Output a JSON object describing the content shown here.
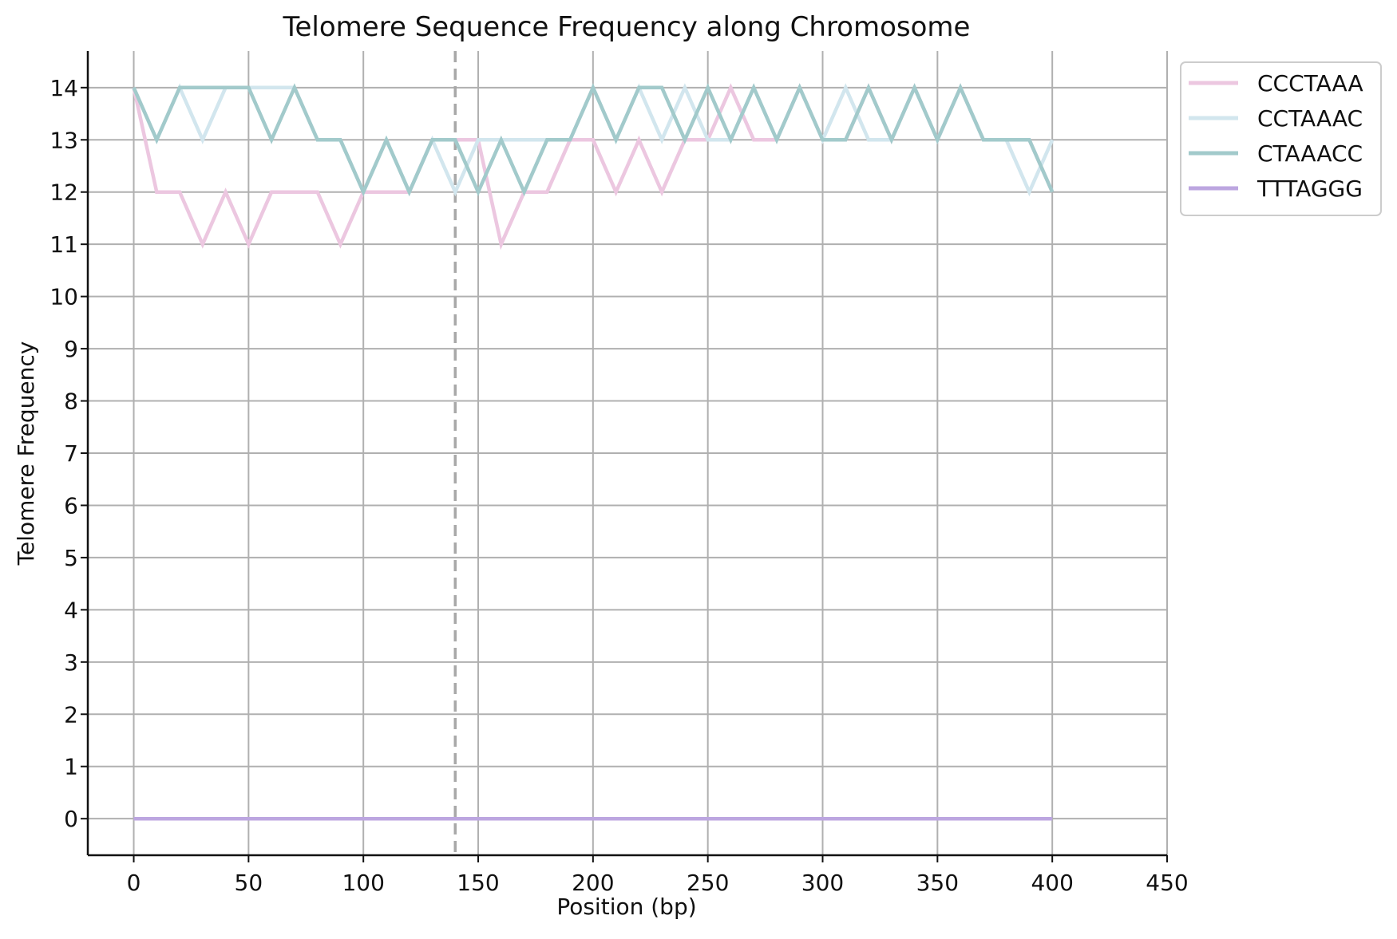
{
  "chart_data": {
    "type": "line",
    "title": "Telomere Sequence Frequency along Chromosome",
    "xlabel": "Position (bp)",
    "ylabel": "Telomere Frequency",
    "xlim": [
      -20,
      450
    ],
    "ylim": [
      -0.7,
      14.7
    ],
    "xticks": [
      "0",
      "50",
      "100",
      "150",
      "200",
      "250",
      "300",
      "350",
      "400",
      "450"
    ],
    "yticks": [
      "0",
      "1",
      "2",
      "3",
      "4",
      "5",
      "6",
      "7",
      "8",
      "9",
      "10",
      "11",
      "12",
      "13",
      "14"
    ],
    "grid": true,
    "legend_position": "top-right",
    "reference_line": {
      "axis": "x",
      "value": 140,
      "style": "dashed",
      "color": "#a8a8a8"
    },
    "x": [
      0,
      10,
      20,
      30,
      40,
      50,
      60,
      70,
      80,
      90,
      100,
      110,
      120,
      130,
      140,
      150,
      160,
      170,
      180,
      190,
      200,
      210,
      220,
      230,
      240,
      250,
      260,
      270,
      280,
      290,
      300,
      310,
      320,
      330,
      340,
      350,
      360,
      370,
      380,
      390,
      400
    ],
    "series": [
      {
        "name": "CCCTAAA",
        "color": "#ecc7e0",
        "values": [
          14,
          12,
          12,
          11,
          12,
          11,
          12,
          12,
          12,
          11,
          12,
          12,
          12,
          13,
          13,
          13,
          11,
          12,
          12,
          13,
          13,
          12,
          13,
          12,
          13,
          13,
          14,
          13,
          13,
          14,
          13,
          13,
          14,
          13,
          14,
          13,
          14,
          13,
          13,
          13,
          12
        ]
      },
      {
        "name": "CCTAAAC",
        "color": "#d2e6ee",
        "values": [
          14,
          13,
          14,
          13,
          14,
          14,
          14,
          14,
          13,
          13,
          12,
          13,
          12,
          13,
          12,
          13,
          13,
          13,
          13,
          13,
          14,
          13,
          14,
          13,
          14,
          13,
          13,
          14,
          13,
          14,
          13,
          14,
          13,
          13,
          14,
          13,
          14,
          13,
          13,
          12,
          13
        ]
      },
      {
        "name": "CTAAACC",
        "color": "#a2cacb",
        "values": [
          14,
          13,
          14,
          14,
          14,
          14,
          13,
          14,
          13,
          13,
          12,
          13,
          12,
          13,
          13,
          12,
          13,
          12,
          13,
          13,
          14,
          13,
          14,
          14,
          13,
          14,
          13,
          14,
          13,
          14,
          13,
          13,
          14,
          13,
          14,
          13,
          14,
          13,
          13,
          13,
          12
        ]
      },
      {
        "name": "TTTAGGG",
        "color": "#bca6e0",
        "values": [
          0,
          0,
          0,
          0,
          0,
          0,
          0,
          0,
          0,
          0,
          0,
          0,
          0,
          0,
          0,
          0,
          0,
          0,
          0,
          0,
          0,
          0,
          0,
          0,
          0,
          0,
          0,
          0,
          0,
          0,
          0,
          0,
          0,
          0,
          0,
          0,
          0,
          0,
          0,
          0,
          0
        ]
      }
    ]
  }
}
